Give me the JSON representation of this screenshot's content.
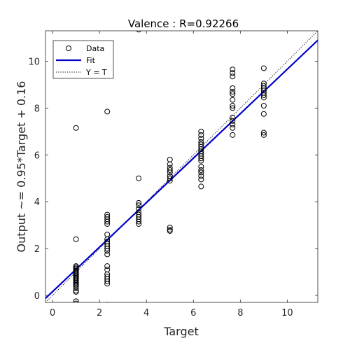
{
  "chart_data": {
    "type": "scatter",
    "title": "Valence : R=0.92266",
    "xlabel": "Target",
    "ylabel": "Output ~= 0.95*Target + 0.16",
    "xlim": [
      -0.3,
      11.3
    ],
    "ylim": [
      -0.3,
      11.3
    ],
    "xticks": [
      0,
      2,
      4,
      6,
      8,
      10
    ],
    "yticks": [
      0,
      2,
      4,
      6,
      8,
      10
    ],
    "grid": false,
    "legend_position": "top-left",
    "series": [
      {
        "name": "Data",
        "kind": "markers",
        "marker": "circle-open",
        "color": "#000000",
        "points": [
          [
            1.0,
            7.15
          ],
          [
            1.0,
            2.4
          ],
          [
            1.0,
            1.25
          ],
          [
            1.0,
            1.2
          ],
          [
            1.0,
            1.15
          ],
          [
            1.0,
            1.1
          ],
          [
            1.0,
            1.05
          ],
          [
            1.0,
            1.0
          ],
          [
            1.0,
            0.95
          ],
          [
            1.0,
            0.9
          ],
          [
            1.0,
            0.85
          ],
          [
            1.0,
            0.8
          ],
          [
            1.0,
            0.75
          ],
          [
            1.0,
            0.7
          ],
          [
            1.0,
            0.65
          ],
          [
            1.0,
            0.6
          ],
          [
            1.0,
            0.55
          ],
          [
            1.0,
            0.5
          ],
          [
            1.0,
            0.45
          ],
          [
            1.0,
            0.4
          ],
          [
            1.0,
            0.3
          ],
          [
            1.0,
            0.2
          ],
          [
            1.0,
            0.15
          ],
          [
            1.0,
            -0.25
          ],
          [
            1.0,
            -0.35
          ],
          [
            2.33,
            7.85
          ],
          [
            2.33,
            3.45
          ],
          [
            2.33,
            3.35
          ],
          [
            2.33,
            3.25
          ],
          [
            2.33,
            3.15
          ],
          [
            2.33,
            3.05
          ],
          [
            2.33,
            2.6
          ],
          [
            2.33,
            2.4
          ],
          [
            2.33,
            2.3
          ],
          [
            2.33,
            2.2
          ],
          [
            2.33,
            2.1
          ],
          [
            2.33,
            2.0
          ],
          [
            2.33,
            1.9
          ],
          [
            2.33,
            1.75
          ],
          [
            2.33,
            1.25
          ],
          [
            2.33,
            1.1
          ],
          [
            2.33,
            0.9
          ],
          [
            2.33,
            0.8
          ],
          [
            2.33,
            0.7
          ],
          [
            2.33,
            0.6
          ],
          [
            2.33,
            0.5
          ],
          [
            2.33,
            -0.4
          ],
          [
            3.67,
            11.35
          ],
          [
            3.67,
            5.0
          ],
          [
            3.67,
            3.95
          ],
          [
            3.67,
            3.85
          ],
          [
            3.67,
            3.7
          ],
          [
            3.67,
            3.55
          ],
          [
            3.67,
            3.45
          ],
          [
            3.67,
            3.35
          ],
          [
            3.67,
            3.25
          ],
          [
            3.67,
            3.15
          ],
          [
            3.67,
            3.05
          ],
          [
            5.0,
            5.8
          ],
          [
            5.0,
            5.6
          ],
          [
            5.0,
            5.45
          ],
          [
            5.0,
            5.35
          ],
          [
            5.0,
            5.25
          ],
          [
            5.0,
            5.1
          ],
          [
            5.0,
            5.0
          ],
          [
            5.0,
            4.9
          ],
          [
            5.0,
            2.9
          ],
          [
            5.0,
            2.8
          ],
          [
            5.0,
            2.75
          ],
          [
            6.33,
            7.0
          ],
          [
            6.33,
            6.85
          ],
          [
            6.33,
            6.7
          ],
          [
            6.33,
            6.55
          ],
          [
            6.33,
            6.45
          ],
          [
            6.33,
            6.35
          ],
          [
            6.33,
            6.25
          ],
          [
            6.33,
            6.15
          ],
          [
            6.33,
            6.05
          ],
          [
            6.33,
            5.95
          ],
          [
            6.33,
            5.85
          ],
          [
            6.33,
            5.75
          ],
          [
            6.33,
            5.5
          ],
          [
            6.33,
            5.35
          ],
          [
            6.33,
            5.25
          ],
          [
            6.33,
            5.1
          ],
          [
            6.33,
            4.95
          ],
          [
            6.33,
            4.65
          ],
          [
            7.67,
            9.65
          ],
          [
            7.67,
            9.5
          ],
          [
            7.67,
            9.35
          ],
          [
            7.67,
            8.85
          ],
          [
            7.67,
            8.7
          ],
          [
            7.67,
            8.6
          ],
          [
            7.67,
            8.35
          ],
          [
            7.67,
            8.1
          ],
          [
            7.67,
            8.0
          ],
          [
            7.67,
            7.6
          ],
          [
            7.67,
            7.45
          ],
          [
            7.67,
            7.3
          ],
          [
            7.67,
            7.15
          ],
          [
            7.67,
            6.85
          ],
          [
            9.0,
            9.7
          ],
          [
            9.0,
            9.05
          ],
          [
            9.0,
            8.95
          ],
          [
            9.0,
            8.85
          ],
          [
            9.0,
            8.75
          ],
          [
            9.0,
            8.65
          ],
          [
            9.0,
            8.55
          ],
          [
            9.0,
            8.45
          ],
          [
            9.0,
            8.1
          ],
          [
            9.0,
            7.75
          ],
          [
            9.0,
            6.95
          ],
          [
            9.0,
            6.85
          ]
        ]
      },
      {
        "name": "Fit",
        "kind": "line",
        "style": "solid",
        "color": "#0000cc",
        "slope": 0.95,
        "intercept": 0.16
      },
      {
        "name": "Y = T",
        "kind": "line",
        "style": "dotted",
        "color": "#000000",
        "slope": 1,
        "intercept": 0
      }
    ]
  }
}
